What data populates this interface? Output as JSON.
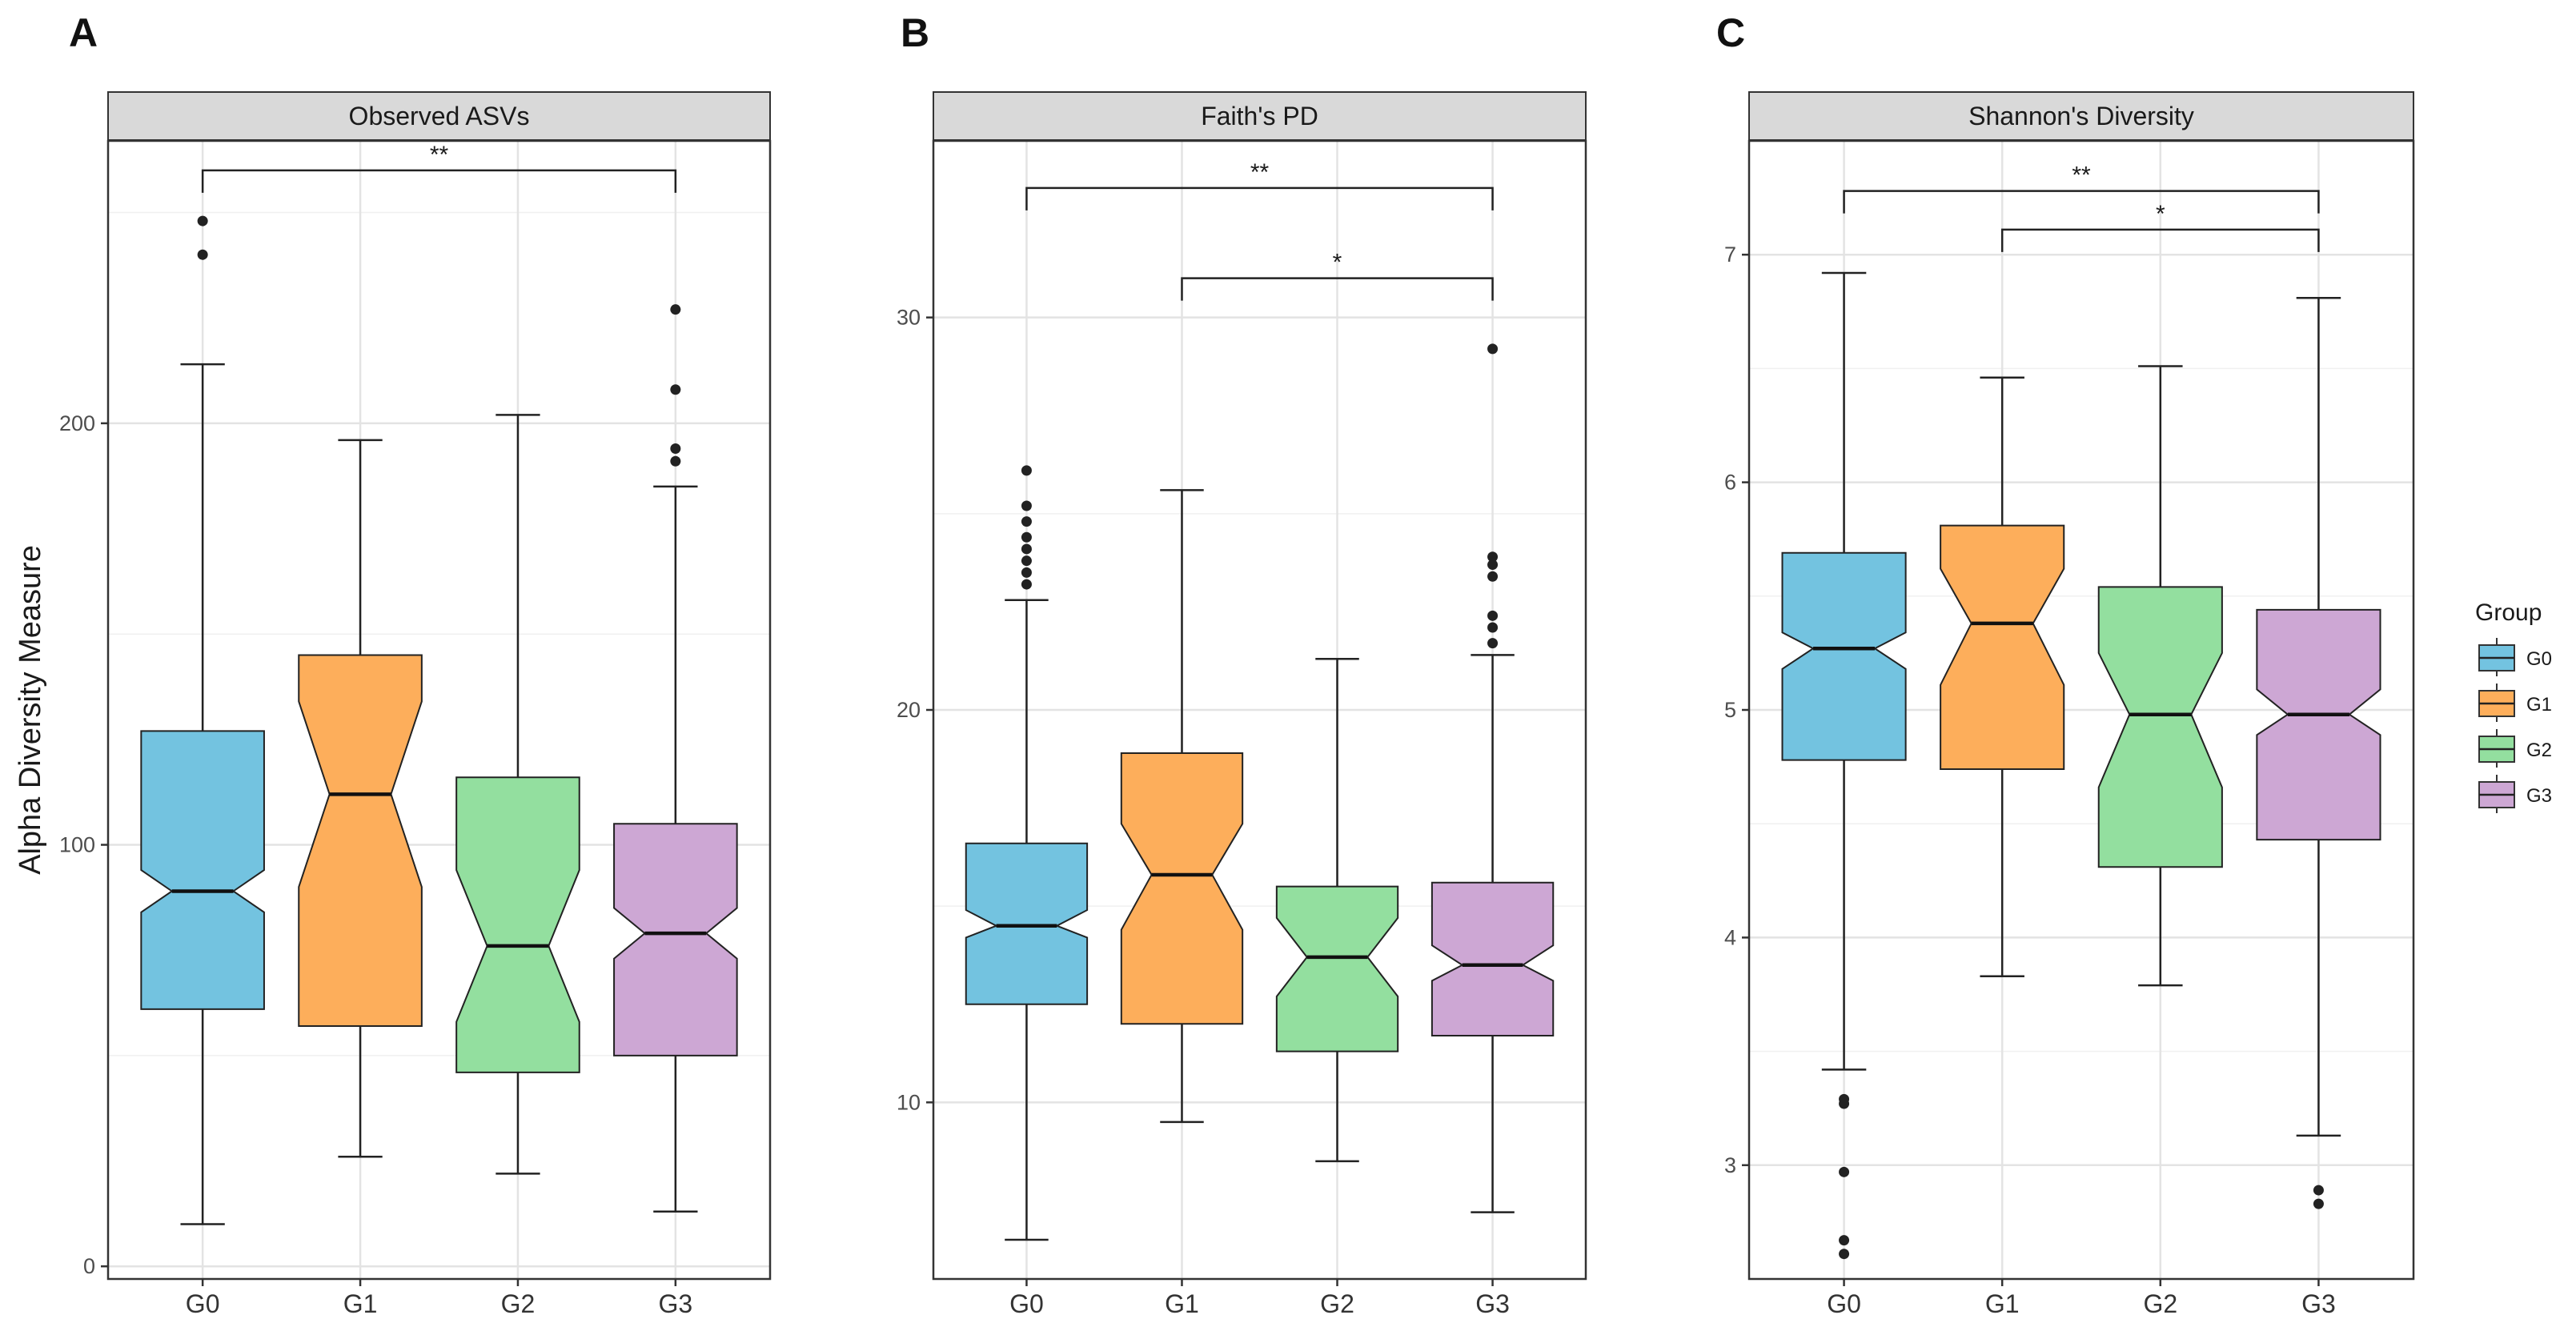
{
  "chart_data": [
    {
      "type": "boxplot",
      "panel_letter": "A",
      "title": "Observed ASVs",
      "ylabel": "Alpha Diversity Measure",
      "xlabel": "",
      "categories": [
        "G0",
        "G1",
        "G2",
        "G3"
      ],
      "ylim": [
        -3,
        267
      ],
      "yticks": [
        0,
        100,
        200
      ],
      "ytick_labels": [
        "0",
        "100",
        "200"
      ],
      "boxes": [
        {
          "group": "G0",
          "whisker_low": 10,
          "q1": 61,
          "median": 89,
          "q3": 127,
          "whisker_high": 214,
          "notch_low": 84,
          "notch_high": 94,
          "outliers": [
            240,
            248
          ]
        },
        {
          "group": "G1",
          "whisker_low": 26,
          "q1": 57,
          "median": 112,
          "q3": 145,
          "whisker_high": 196,
          "notch_low": 90,
          "notch_high": 134,
          "outliers": []
        },
        {
          "group": "G2",
          "whisker_low": 22,
          "q1": 46,
          "median": 76,
          "q3": 116,
          "whisker_high": 202,
          "notch_low": 58,
          "notch_high": 94,
          "outliers": []
        },
        {
          "group": "G3",
          "whisker_low": 13,
          "q1": 50,
          "median": 79,
          "q3": 105,
          "whisker_high": 185,
          "notch_low": 73,
          "notch_high": 85,
          "outliers": [
            191,
            194,
            208,
            227
          ]
        }
      ],
      "significance": [
        {
          "from": "G0",
          "to": "G3",
          "label": "**",
          "y": 260
        }
      ]
    },
    {
      "type": "boxplot",
      "panel_letter": "B",
      "title": "Faith's PD",
      "ylabel": "",
      "xlabel": "",
      "categories": [
        "G0",
        "G1",
        "G2",
        "G3"
      ],
      "ylim": [
        5.5,
        34.5
      ],
      "yticks": [
        10,
        20,
        30
      ],
      "ytick_labels": [
        "10",
        "20",
        "30"
      ],
      "boxes": [
        {
          "group": "G0",
          "whisker_low": 6.5,
          "q1": 12.5,
          "median": 14.5,
          "q3": 16.6,
          "whisker_high": 22.8,
          "notch_low": 14.2,
          "notch_high": 14.9,
          "outliers": [
            23.2,
            23.5,
            23.8,
            24.1,
            24.4,
            24.8,
            25.2,
            26.1
          ]
        },
        {
          "group": "G1",
          "whisker_low": 9.5,
          "q1": 12.0,
          "median": 15.8,
          "q3": 18.9,
          "whisker_high": 25.6,
          "notch_low": 14.4,
          "notch_high": 17.1,
          "outliers": []
        },
        {
          "group": "G2",
          "whisker_low": 8.5,
          "q1": 11.3,
          "median": 13.7,
          "q3": 15.5,
          "whisker_high": 21.3,
          "notch_low": 12.7,
          "notch_high": 14.7,
          "outliers": []
        },
        {
          "group": "G3",
          "whisker_low": 7.2,
          "q1": 11.7,
          "median": 13.5,
          "q3": 15.6,
          "whisker_high": 21.4,
          "notch_low": 13.1,
          "notch_high": 14.0,
          "outliers": [
            21.7,
            22.1,
            22.4,
            23.4,
            23.7,
            23.9,
            29.2
          ]
        }
      ],
      "significance": [
        {
          "from": "G0",
          "to": "G3",
          "label": "**",
          "y": 33.3
        },
        {
          "from": "G1",
          "to": "G3",
          "label": "*",
          "y": 31.0
        }
      ]
    },
    {
      "type": "boxplot",
      "panel_letter": "C",
      "title": "Shannon's Diversity",
      "ylabel": "",
      "xlabel": "",
      "categories": [
        "G0",
        "G1",
        "G2",
        "G3"
      ],
      "ylim": [
        2.5,
        7.5
      ],
      "yticks": [
        3,
        4,
        5,
        6,
        7
      ],
      "ytick_labels": [
        "3",
        "4",
        "5",
        "6",
        "7"
      ],
      "boxes": [
        {
          "group": "G0",
          "whisker_low": 3.42,
          "q1": 4.78,
          "median": 5.27,
          "q3": 5.69,
          "whisker_high": 6.92,
          "notch_low": 5.18,
          "notch_high": 5.34,
          "outliers": [
            2.61,
            2.67,
            2.97,
            3.27,
            3.29
          ]
        },
        {
          "group": "G1",
          "whisker_low": 3.83,
          "q1": 4.74,
          "median": 5.38,
          "q3": 5.81,
          "whisker_high": 6.46,
          "notch_low": 5.11,
          "notch_high": 5.62,
          "outliers": []
        },
        {
          "group": "G2",
          "whisker_low": 3.79,
          "q1": 4.31,
          "median": 4.98,
          "q3": 5.54,
          "whisker_high": 6.51,
          "notch_low": 4.66,
          "notch_high": 5.25,
          "outliers": []
        },
        {
          "group": "G3",
          "whisker_low": 3.13,
          "q1": 4.43,
          "median": 4.98,
          "q3": 5.44,
          "whisker_high": 6.81,
          "notch_low": 4.89,
          "notch_high": 5.09,
          "outliers": [
            2.83,
            2.89
          ]
        }
      ],
      "significance": [
        {
          "from": "G0",
          "to": "G3",
          "label": "**",
          "y": 7.28
        },
        {
          "from": "G1",
          "to": "G3",
          "label": "*",
          "y": 7.11
        }
      ]
    }
  ],
  "legend": {
    "title": "Group",
    "position": "right",
    "items": [
      {
        "label": "G0",
        "color": "#73c3e0"
      },
      {
        "label": "G1",
        "color": "#fdae5b"
      },
      {
        "label": "G2",
        "color": "#93df9f"
      },
      {
        "label": "G3",
        "color": "#cda7d4"
      }
    ]
  }
}
